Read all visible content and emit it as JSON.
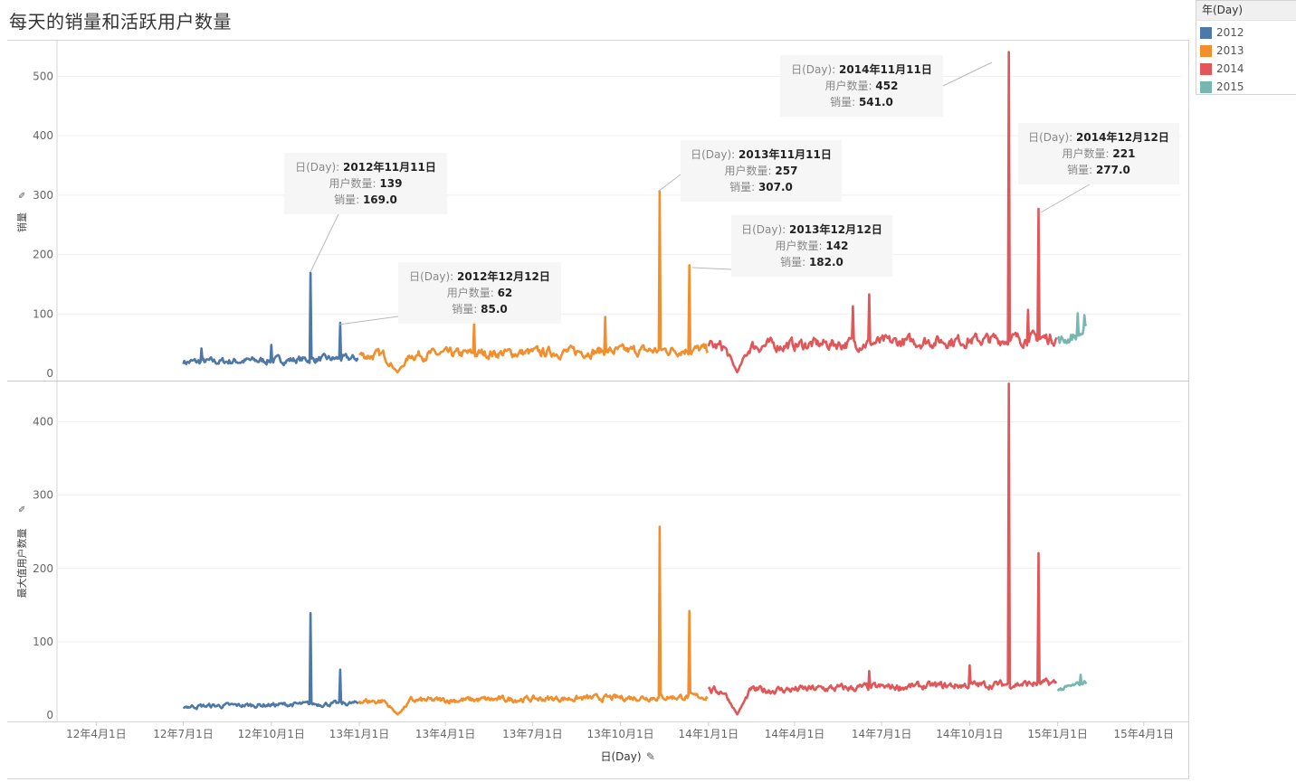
{
  "title": "每天的销量和活跃用户数量",
  "legend": {
    "title": "年(Day)",
    "items": [
      {
        "label": "2012",
        "color": "#4e79a7"
      },
      {
        "label": "2013",
        "color": "#f28e2b"
      },
      {
        "label": "2014",
        "color": "#e15759"
      },
      {
        "label": "2015",
        "color": "#76b7b2"
      }
    ]
  },
  "chart_data": [
    {
      "type": "line",
      "ylabel": "销量",
      "ylabel_pin_icon": "pin-icon",
      "ylim": [
        0,
        560
      ],
      "y_ticks": [
        "0",
        "100",
        "200",
        "300",
        "400",
        "500"
      ],
      "y_tick_values": [
        0,
        100,
        200,
        300,
        400,
        500
      ],
      "grid": true,
      "series": [
        {
          "name": "2012",
          "color": "#4e79a7",
          "start": "2012-07-01",
          "end": "2012-12-31",
          "baseline": 22,
          "noise": 12,
          "spikes": [
            [
              "2012-11-11",
              169
            ],
            [
              "2012-12-12",
              85
            ],
            [
              "2012-07-20",
              42
            ],
            [
              "2012-10-01",
              48
            ]
          ]
        },
        {
          "name": "2013",
          "color": "#f28e2b",
          "start": "2013-01-01",
          "end": "2013-12-31",
          "baseline": 35,
          "noise": 16,
          "dips": [
            [
              "2013-02-10",
              2
            ]
          ],
          "spikes": [
            [
              "2013-11-11",
              307
            ],
            [
              "2013-12-12",
              182
            ],
            [
              "2013-05-01",
              86
            ],
            [
              "2013-09-15",
              95
            ]
          ]
        },
        {
          "name": "2014",
          "color": "#e15759",
          "start": "2014-01-01",
          "end": "2014-12-31",
          "baseline": 52,
          "noise": 20,
          "dips": [
            [
              "2014-01-31",
              2
            ]
          ],
          "spikes": [
            [
              "2014-11-11",
              541
            ],
            [
              "2014-12-12",
              277
            ],
            [
              "2014-06-18",
              133
            ],
            [
              "2014-06-01",
              113
            ],
            [
              "2014-12-01",
              107
            ]
          ]
        },
        {
          "name": "2015",
          "color": "#76b7b2",
          "start": "2015-01-01",
          "end": "2015-01-31",
          "baseline": 62,
          "noise": 18,
          "spikes": [
            [
              "2015-01-22",
              101
            ],
            [
              "2015-01-29",
              98
            ]
          ]
        }
      ],
      "annotations": [
        {
          "date_label": "2012年11月11日",
          "users": "139",
          "sales": "169.0"
        },
        {
          "date_label": "2012年12月12日",
          "users": "62",
          "sales": "85.0"
        },
        {
          "date_label": "2013年11月11日",
          "users": "257",
          "sales": "307.0"
        },
        {
          "date_label": "2013年12月12日",
          "users": "142",
          "sales": "182.0"
        },
        {
          "date_label": "2014年11月11日",
          "users": "452",
          "sales": "541.0"
        },
        {
          "date_label": "2014年12月12日",
          "users": "221",
          "sales": "277.0"
        }
      ],
      "annotation_labels": {
        "day": "日(Day): ",
        "users": "用户数量: ",
        "sales": "销量: "
      }
    },
    {
      "type": "line",
      "ylabel": "最大值用户数量",
      "ylabel_pin_icon": "pin-icon",
      "ylim": [
        0,
        455
      ],
      "y_ticks": [
        "0",
        "100",
        "200",
        "300",
        "400"
      ],
      "y_tick_values": [
        0,
        100,
        200,
        300,
        400
      ],
      "grid": true,
      "series": [
        {
          "name": "2012",
          "color": "#4e79a7",
          "start": "2012-07-01",
          "end": "2012-12-31",
          "baseline": 14,
          "noise": 6,
          "spikes": [
            [
              "2012-11-11",
              139
            ],
            [
              "2012-12-12",
              62
            ]
          ]
        },
        {
          "name": "2013",
          "color": "#f28e2b",
          "start": "2013-01-01",
          "end": "2013-12-31",
          "baseline": 22,
          "noise": 8,
          "dips": [
            [
              "2013-02-10",
              1
            ]
          ],
          "spikes": [
            [
              "2013-11-11",
              257
            ],
            [
              "2013-12-12",
              142
            ]
          ]
        },
        {
          "name": "2014",
          "color": "#e15759",
          "start": "2014-01-01",
          "end": "2014-12-31",
          "baseline": 38,
          "noise": 10,
          "dips": [
            [
              "2014-01-31",
              1
            ]
          ],
          "spikes": [
            [
              "2014-11-11",
              452
            ],
            [
              "2014-12-12",
              221
            ],
            [
              "2014-06-18",
              60
            ],
            [
              "2014-10-01",
              68
            ]
          ]
        },
        {
          "name": "2015",
          "color": "#76b7b2",
          "start": "2015-01-01",
          "end": "2015-01-31",
          "baseline": 40,
          "noise": 6,
          "spikes": [
            [
              "2015-01-25",
              55
            ]
          ]
        }
      ]
    }
  ],
  "x_axis": {
    "label": "日(Day)",
    "label_pin_icon": "pin-icon",
    "xlim": [
      "2012-02-20",
      "2015-05-10"
    ],
    "ticks": [
      {
        "date": "2012-04-01",
        "label": "12年4月1日"
      },
      {
        "date": "2012-07-01",
        "label": "12年7月1日"
      },
      {
        "date": "2012-10-01",
        "label": "12年10月1日"
      },
      {
        "date": "2013-01-01",
        "label": "13年1月1日"
      },
      {
        "date": "2013-04-01",
        "label": "13年4月1日"
      },
      {
        "date": "2013-07-01",
        "label": "13年7月1日"
      },
      {
        "date": "2013-10-01",
        "label": "13年10月1日"
      },
      {
        "date": "2014-01-01",
        "label": "14年1月1日"
      },
      {
        "date": "2014-04-01",
        "label": "14年4月1日"
      },
      {
        "date": "2014-07-01",
        "label": "14年7月1日"
      },
      {
        "date": "2014-10-01",
        "label": "14年10月1日"
      },
      {
        "date": "2015-01-01",
        "label": "15年1月1日"
      },
      {
        "date": "2015-04-01",
        "label": "15年4月1日"
      }
    ]
  }
}
